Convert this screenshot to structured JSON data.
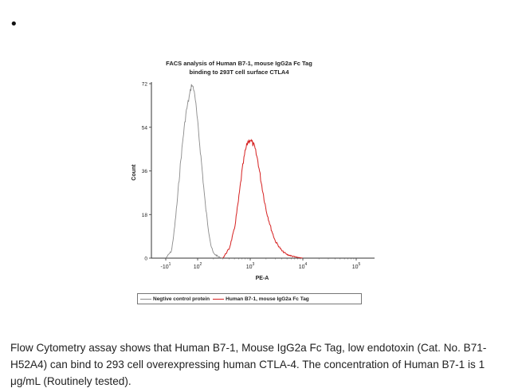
{
  "bullet": "•",
  "chart_data": {
    "type": "line",
    "title": "FACS analysis of Human B7-1, mouse IgG2a Fc Tag\nbinding to 293T cell surface CTLA4",
    "xlabel": "PE-A",
    "ylabel": "Count",
    "x_scale": "log (biexponential)",
    "y_ticks": [
      "0",
      "18",
      "36",
      "54",
      "72"
    ],
    "ylim": [
      0,
      72
    ],
    "x_ticks": [
      {
        "base": "-10",
        "exp": "1",
        "value": -10
      },
      {
        "base": "10",
        "exp": "2",
        "value": 100
      },
      {
        "base": "10",
        "exp": "3",
        "value": 1000
      },
      {
        "base": "10",
        "exp": "4",
        "value": 10000
      },
      {
        "base": "10",
        "exp": "5",
        "value": 100000
      }
    ],
    "legend_placement": "bottom",
    "grid": false,
    "series": [
      {
        "name": "Negtive control protein",
        "color": "#8a8a8a",
        "x": [
          -10,
          10,
          20,
          30,
          40,
          50,
          60,
          70,
          80,
          90,
          100,
          120,
          140,
          160,
          180,
          200,
          250,
          300
        ],
        "y": [
          0,
          3,
          12,
          24,
          38,
          50,
          60,
          66,
          72,
          68,
          56,
          38,
          22,
          12,
          5,
          2,
          0.5,
          0
        ]
      },
      {
        "name": "Human B7-1, mouse IgG2a Fc Tag",
        "color": "#d62020",
        "x": [
          300,
          400,
          500,
          600,
          700,
          800,
          900,
          1000,
          1200,
          1400,
          1600,
          2000,
          2500,
          3000,
          4000,
          5000,
          7000,
          10000
        ],
        "y": [
          0,
          4,
          12,
          24,
          36,
          44,
          48,
          49,
          46,
          40,
          32,
          20,
          12,
          7,
          3,
          1.5,
          0.5,
          0
        ]
      }
    ]
  },
  "caption": "Flow Cytometry assay shows that Human B7-1, Mouse IgG2a Fc Tag, low endotoxin (Cat. No. B71-H52A4) can bind to 293 cell overexpressing human CTLA-4. The concentration of Human B7-1 is 1 μg/mL (Routinely tested)."
}
